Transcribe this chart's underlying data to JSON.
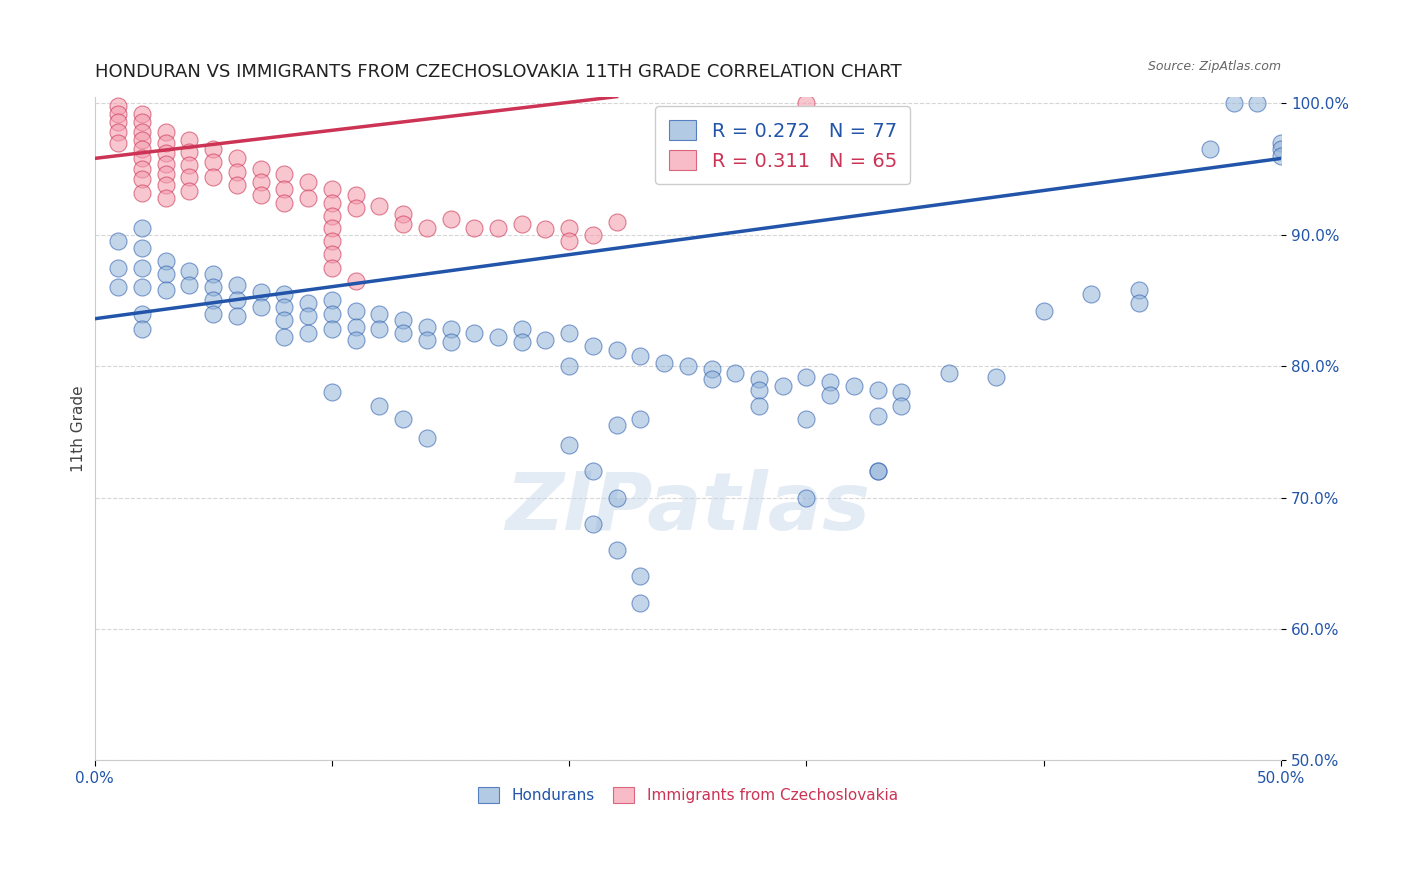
{
  "title": "HONDURAN VS IMMIGRANTS FROM CZECHOSLOVAKIA 11TH GRADE CORRELATION CHART",
  "source": "Source: ZipAtlas.com",
  "ylabel": "11th Grade",
  "xlabel_blue": "Hondurans",
  "xlabel_pink": "Immigrants from Czechoslovakia",
  "legend_blue_r": "R = 0.272",
  "legend_blue_n": "N = 77",
  "legend_pink_r": "R = 0.311",
  "legend_pink_n": "N = 65",
  "xmin": 0.0,
  "xmax": 0.5,
  "ymin": 0.5,
  "ymax": 1.005,
  "yticks": [
    0.5,
    0.6,
    0.7,
    0.8,
    0.9,
    1.0
  ],
  "ytick_labels": [
    "50.0%",
    "60.0%",
    "70.0%",
    "80.0%",
    "90.0%",
    "100.0%"
  ],
  "xticks": [
    0.0,
    0.1,
    0.2,
    0.3,
    0.4,
    0.5
  ],
  "xtick_labels": [
    "0.0%",
    "",
    "",
    "",
    "",
    "50.0%"
  ],
  "blue_color": "#92B4D8",
  "pink_color": "#F4A0B0",
  "blue_line_color": "#2255AA",
  "pink_line_color": "#CC3355",
  "watermark_color": "#C8D8EC",
  "blue_scatter_x": [
    0.01,
    0.01,
    0.01,
    0.02,
    0.02,
    0.02,
    0.02,
    0.03,
    0.03,
    0.03,
    0.04,
    0.04,
    0.05,
    0.05,
    0.05,
    0.05,
    0.06,
    0.06,
    0.06,
    0.07,
    0.07,
    0.08,
    0.08,
    0.08,
    0.08,
    0.09,
    0.09,
    0.09,
    0.1,
    0.1,
    0.1,
    0.11,
    0.11,
    0.11,
    0.12,
    0.12,
    0.13,
    0.13,
    0.14,
    0.14,
    0.15,
    0.15,
    0.16,
    0.17,
    0.18,
    0.18,
    0.19,
    0.2,
    0.21,
    0.22,
    0.23,
    0.24,
    0.25,
    0.26,
    0.26,
    0.27,
    0.28,
    0.28,
    0.29,
    0.3,
    0.31,
    0.31,
    0.32,
    0.33,
    0.34,
    0.36,
    0.38,
    0.4,
    0.42,
    0.44,
    0.44,
    0.47,
    0.48,
    0.49,
    0.5,
    0.5,
    0.5
  ],
  "blue_scatter_y": [
    0.895,
    0.875,
    0.86,
    0.905,
    0.89,
    0.875,
    0.86,
    0.88,
    0.87,
    0.858,
    0.872,
    0.862,
    0.87,
    0.86,
    0.85,
    0.84,
    0.862,
    0.85,
    0.838,
    0.856,
    0.845,
    0.855,
    0.845,
    0.835,
    0.822,
    0.848,
    0.838,
    0.825,
    0.85,
    0.84,
    0.828,
    0.842,
    0.83,
    0.82,
    0.84,
    0.828,
    0.835,
    0.825,
    0.83,
    0.82,
    0.828,
    0.818,
    0.825,
    0.822,
    0.828,
    0.818,
    0.82,
    0.825,
    0.815,
    0.812,
    0.808,
    0.802,
    0.8,
    0.798,
    0.79,
    0.795,
    0.79,
    0.782,
    0.785,
    0.792,
    0.788,
    0.778,
    0.785,
    0.782,
    0.78,
    0.795,
    0.792,
    0.842,
    0.855,
    0.858,
    0.848,
    0.965,
    1.0,
    1.0,
    0.97,
    0.965,
    0.96
  ],
  "blue_scatter_extra_x": [
    0.02,
    0.02,
    0.2,
    0.22,
    0.23,
    0.28,
    0.33
  ],
  "blue_scatter_extra_y": [
    0.84,
    0.828,
    0.8,
    0.755,
    0.76,
    0.77,
    0.762
  ],
  "blue_low_x": [
    0.1,
    0.12,
    0.13,
    0.14,
    0.2,
    0.21,
    0.22,
    0.3,
    0.34
  ],
  "blue_low_y": [
    0.78,
    0.77,
    0.76,
    0.745,
    0.74,
    0.72,
    0.7,
    0.76,
    0.77
  ],
  "blue_vlow_x": [
    0.21,
    0.22,
    0.23,
    0.23,
    0.3,
    0.33,
    0.33
  ],
  "blue_vlow_y": [
    0.68,
    0.66,
    0.64,
    0.62,
    0.7,
    0.72,
    0.72
  ],
  "pink_scatter_x": [
    0.01,
    0.01,
    0.01,
    0.01,
    0.01,
    0.02,
    0.02,
    0.02,
    0.02,
    0.02,
    0.02,
    0.02,
    0.02,
    0.02,
    0.03,
    0.03,
    0.03,
    0.03,
    0.03,
    0.03,
    0.03,
    0.04,
    0.04,
    0.04,
    0.04,
    0.04,
    0.05,
    0.05,
    0.05,
    0.06,
    0.06,
    0.06,
    0.07,
    0.07,
    0.07,
    0.08,
    0.08,
    0.08,
    0.09,
    0.09,
    0.1,
    0.1,
    0.1,
    0.11,
    0.11,
    0.12,
    0.13,
    0.13,
    0.14,
    0.15,
    0.16,
    0.17,
    0.18,
    0.19,
    0.2,
    0.2,
    0.21,
    0.22,
    0.3,
    0.3,
    0.1,
    0.1,
    0.1,
    0.1,
    0.11
  ],
  "pink_scatter_y": [
    0.998,
    0.992,
    0.986,
    0.978,
    0.97,
    0.992,
    0.986,
    0.978,
    0.972,
    0.965,
    0.958,
    0.95,
    0.942,
    0.932,
    0.978,
    0.97,
    0.962,
    0.954,
    0.946,
    0.938,
    0.928,
    0.972,
    0.963,
    0.953,
    0.944,
    0.933,
    0.965,
    0.955,
    0.944,
    0.958,
    0.948,
    0.938,
    0.95,
    0.94,
    0.93,
    0.946,
    0.935,
    0.924,
    0.94,
    0.928,
    0.935,
    0.924,
    0.914,
    0.93,
    0.92,
    0.922,
    0.916,
    0.908,
    0.905,
    0.912,
    0.905,
    0.905,
    0.908,
    0.904,
    0.905,
    0.895,
    0.9,
    0.91,
    1.0,
    0.99,
    0.905,
    0.895,
    0.885,
    0.875,
    0.865
  ],
  "blue_line_x": [
    0.0,
    0.5
  ],
  "blue_line_y": [
    0.836,
    0.958
  ],
  "pink_line_x": [
    0.0,
    0.22
  ],
  "pink_line_y": [
    0.958,
    1.005
  ],
  "grid_color": "#CCCCCC",
  "background_color": "#FFFFFF",
  "title_fontsize": 13,
  "axis_fontsize": 11,
  "tick_fontsize": 11,
  "legend_fontsize": 14
}
